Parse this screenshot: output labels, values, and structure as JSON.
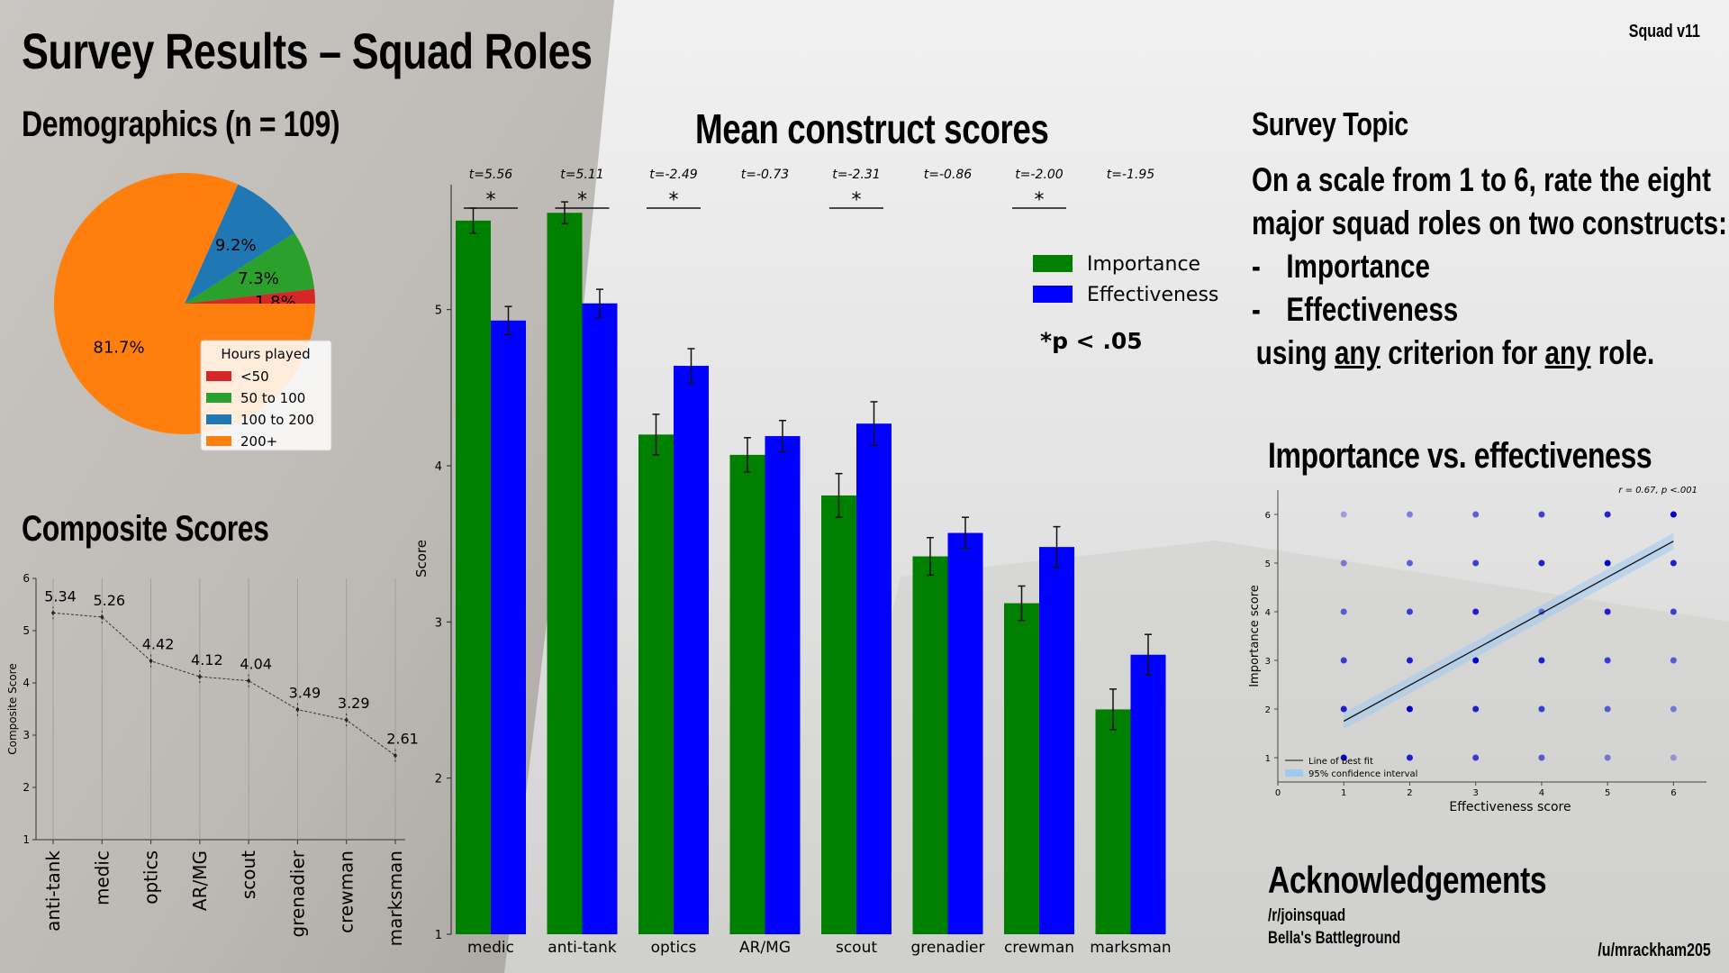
{
  "header": {
    "title": "Survey Results – Squad Roles",
    "version": "Squad v11",
    "demographics_title": "Demographics (n = 109)",
    "composite_title": "Composite Scores",
    "mean_title": "Mean construct scores"
  },
  "topic": {
    "title": "Survey Topic",
    "line1": "On a scale from 1 to 6, rate the eight",
    "line2": "major squad roles on two constructs:",
    "bullet": "-",
    "item1": "Importance",
    "item2": "Effectiveness",
    "line5a": "using ",
    "line5b": "any",
    "line5c": " criterion for ",
    "line5d": "any",
    "line5e": " role."
  },
  "scatter_title": "Importance vs. effectiveness",
  "acknowledgements": {
    "title": "Acknowledgements",
    "items": [
      "/r/joinsquad",
      "Bella's Battleground"
    ]
  },
  "footer_user": "/u/mrackham205",
  "colors": {
    "importance": "#008000",
    "effectiveness": "#0000ff"
  },
  "chart_data": [
    {
      "type": "pie",
      "legend_title": "Hours played",
      "legend_position": "lower-right",
      "slices": [
        {
          "label": "<50",
          "value": 1.8,
          "text": "1.8%",
          "color": "#d62728"
        },
        {
          "label": "50 to 100",
          "value": 7.3,
          "text": "7.3%",
          "color": "#2ca02c"
        },
        {
          "label": "100 to 200",
          "value": 9.2,
          "text": "9.2%",
          "color": "#1f77b4"
        },
        {
          "label": "200+",
          "value": 81.7,
          "text": "81.7%",
          "color": "#ff7f0e"
        }
      ]
    },
    {
      "type": "line",
      "ylabel": "Composite Score",
      "ylim": [
        1,
        6
      ],
      "yticks": [
        "1",
        "2",
        "3",
        "4",
        "5",
        "6"
      ],
      "categories": [
        "anti-tank",
        "medic",
        "optics",
        "AR/MG",
        "scout",
        "grenadier",
        "crewman",
        "marksman"
      ],
      "values": [
        5.34,
        5.26,
        4.42,
        4.12,
        4.04,
        3.49,
        3.29,
        2.61
      ],
      "labels": [
        "5.34",
        "5.26",
        "4.42",
        "4.12",
        "4.04",
        "3.49",
        "3.29",
        "2.61"
      ]
    },
    {
      "type": "bar",
      "ylabel": "Score",
      "ylim": [
        1,
        5.8
      ],
      "yticks": [
        "1",
        "2",
        "3",
        "4",
        "5"
      ],
      "categories": [
        "medic",
        "anti-tank",
        "optics",
        "AR/MG",
        "scout",
        "grenadier",
        "crewman",
        "marksman"
      ],
      "series": [
        {
          "name": "Importance",
          "values": [
            5.57,
            5.62,
            4.2,
            4.07,
            3.81,
            3.42,
            3.12,
            2.44
          ],
          "errors": [
            0.08,
            0.07,
            0.13,
            0.11,
            0.14,
            0.12,
            0.11,
            0.13
          ]
        },
        {
          "name": "Effectiveness",
          "values": [
            4.93,
            5.04,
            4.64,
            4.19,
            4.27,
            3.57,
            3.48,
            2.79
          ],
          "errors": [
            0.09,
            0.09,
            0.11,
            0.1,
            0.14,
            0.1,
            0.13,
            0.13
          ]
        }
      ],
      "t_values": [
        "t=5.56",
        "t=5.11",
        "t=-2.49",
        "t=-0.73",
        "t=-2.31",
        "t=-0.86",
        "t=-2.00",
        "t=-1.95"
      ],
      "significant": [
        true,
        true,
        true,
        false,
        true,
        false,
        true,
        false
      ],
      "sig_mark": "*",
      "sig_note": "*p < .05",
      "legend_position": "upper-right"
    },
    {
      "type": "scatter",
      "xlabel": "Effectiveness score",
      "ylabel": "Importance score",
      "xlim": [
        0,
        6.5
      ],
      "ylim": [
        0.5,
        6.5
      ],
      "xticks": [
        "0",
        "1",
        "2",
        "3",
        "4",
        "5",
        "6"
      ],
      "yticks": [
        "1",
        "2",
        "3",
        "4",
        "5",
        "6"
      ],
      "annotation": "r = 0.67, p <.001",
      "fit_line": {
        "x": [
          1,
          6
        ],
        "y": [
          1.75,
          5.45
        ]
      },
      "legend": [
        "Line of best fit",
        "95% confidence interval"
      ],
      "grid_range": [
        1,
        6
      ]
    }
  ]
}
